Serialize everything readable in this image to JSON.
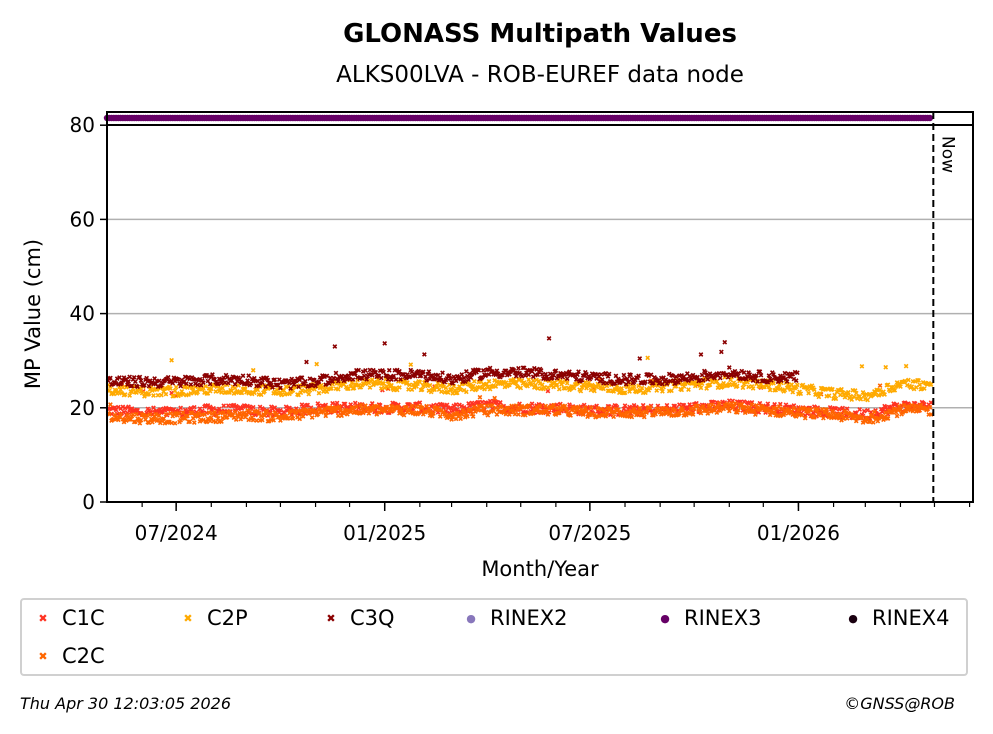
{
  "chart_data": {
    "type": "scatter",
    "title": "GLONASS Multipath Values",
    "subtitle": "ALKS00LVA - ROB-EUREF data node",
    "xlabel": "Month/Year",
    "ylabel": "MP Value (cm)",
    "ylim": [
      0,
      82.8
    ],
    "xlim": [
      "2024-05-01",
      "2026-06-04"
    ],
    "yticks": [
      0,
      20,
      40,
      60,
      80
    ],
    "xticks": [
      {
        "date": "2024-07-01",
        "label": "07/2024"
      },
      {
        "date": "2025-01-01",
        "label": "01/2025"
      },
      {
        "date": "2025-07-01",
        "label": "07/2025"
      },
      {
        "date": "2026-01-01",
        "label": "01/2026"
      }
    ],
    "grid": "y",
    "now_line": {
      "date": "2026-04-30",
      "label": "Now"
    },
    "months": [
      "2024-05",
      "2024-06",
      "2024-07",
      "2024-08",
      "2024-09",
      "2024-10",
      "2024-11",
      "2024-12",
      "2025-01",
      "2025-02",
      "2025-03",
      "2025-04",
      "2025-05",
      "2025-06",
      "2025-07",
      "2025-08",
      "2025-09",
      "2025-10",
      "2025-11",
      "2025-12",
      "2026-01",
      "2026-02",
      "2026-03",
      "2026-04"
    ],
    "series": [
      {
        "name": "C1C",
        "color": "#ff3322",
        "monthly_mean": [
          19.5,
          19,
          19,
          19.5,
          19.5,
          19,
          20,
          20,
          20,
          20,
          19.5,
          20.5,
          20,
          20,
          19.5,
          19.5,
          19.5,
          20,
          20.5,
          20,
          19.5,
          19,
          18.5,
          20.3
        ]
      },
      {
        "name": "C2C",
        "color": "#ff6600",
        "monthly_mean": [
          18,
          17.8,
          17.8,
          18,
          18.5,
          18,
          19,
          19.5,
          19.5,
          19.5,
          18.5,
          19.5,
          19.5,
          19.5,
          19,
          19,
          19,
          19.5,
          20,
          19.5,
          19,
          18.5,
          17.5,
          19.5
        ]
      },
      {
        "name": "C2P",
        "color": "#ffaa00",
        "monthly_mean": [
          24,
          23.5,
          23.5,
          24,
          24,
          23.5,
          24,
          25,
          25,
          24.5,
          24,
          25,
          25,
          25,
          24.5,
          24,
          24.5,
          25,
          25.5,
          25,
          24,
          23,
          22.5,
          25
        ]
      },
      {
        "name": "C3Q",
        "color": "#8b0000",
        "monthly_mean": [
          25.5,
          25.5,
          25.5,
          26,
          26,
          25,
          25.5,
          27,
          27,
          27,
          26,
          27.5,
          27.5,
          27,
          26.5,
          26,
          26,
          26.5,
          27.5,
          26.5,
          null,
          null,
          null,
          null
        ]
      },
      {
        "name": "RINEX3",
        "color": "#660066",
        "constant": 81.5
      }
    ],
    "legend": {
      "placement": "bottom",
      "entries": [
        {
          "label": "C1C",
          "color": "#ff3322",
          "marker": "x"
        },
        {
          "label": "C2P",
          "color": "#ffaa00",
          "marker": "x"
        },
        {
          "label": "C3Q",
          "color": "#8b0000",
          "marker": "x"
        },
        {
          "label": "RINEX2",
          "color": "#8877bb",
          "marker": "o"
        },
        {
          "label": "RINEX3",
          "color": "#660066",
          "marker": "o"
        },
        {
          "label": "RINEX4",
          "color": "#1a0010",
          "marker": "o"
        },
        {
          "label": "C2C",
          "color": "#ff6600",
          "marker": "x"
        }
      ]
    }
  },
  "footer": {
    "timestamp": "Thu Apr 30 12:03:05 2026",
    "credit": "©GNSS@ROB"
  }
}
